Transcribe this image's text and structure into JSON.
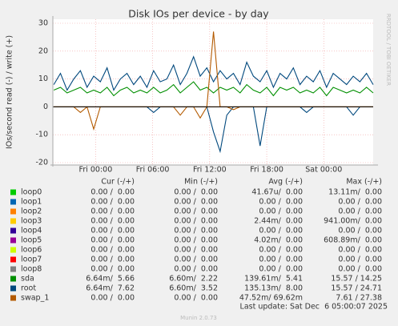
{
  "chart_data": {
    "type": "line",
    "title": "Disk IOs per device - by day",
    "y_label": "IOs/second read (-) / write (+)",
    "watermark": "RRDTOOL / TOBI OETIKER",
    "footer": "Munin 2.0.73",
    "last_update": "Last update: Sat Dec  6 05:00:07 2025",
    "column_headers": [
      "Cur (-/+)",
      "Min (-/+)",
      "Avg (-/+)",
      "Max (-/+)"
    ],
    "x": [
      -4.4,
      -3.7,
      -3,
      -2.3,
      -1.6,
      -0.9,
      -0.2,
      0.5,
      1.2,
      1.9,
      2.6,
      3.3,
      4,
      4.7,
      5.4,
      6.1,
      6.8,
      7.5,
      8.2,
      8.9,
      9.6,
      10.3,
      11,
      11.7,
      12.4,
      13.1,
      13.8,
      14.5,
      15.2,
      15.9,
      16.6,
      17.3,
      18,
      18.7,
      19.4,
      20.1,
      20.8,
      21.5,
      22.2,
      22.9,
      23.6,
      24.3,
      25,
      25.7,
      26.4,
      27.1,
      27.8,
      28.5,
      29.2
    ],
    "xlim": [
      -4.5,
      29.2
    ],
    "xticks": [
      {
        "value": 0,
        "label": "Fri 00:00"
      },
      {
        "value": 6,
        "label": "Fri 06:00"
      },
      {
        "value": 12,
        "label": "Fri 12:00"
      },
      {
        "value": 18,
        "label": "Fri 18:00"
      },
      {
        "value": 24,
        "label": "Sat 00:00"
      }
    ],
    "ylim": [
      -20,
      30
    ],
    "yticks": [
      -20,
      -10,
      0,
      10,
      20,
      30
    ],
    "grid": true,
    "series": [
      {
        "name": "loop0",
        "color": "#00cc00",
        "stats": [
          "0.00 /  0.00",
          "0.00 /  0.00",
          "41.67u/  0.00",
          "13.11m/  0.00"
        ]
      },
      {
        "name": "loop1",
        "color": "#0066b3",
        "stats": [
          "0.00 /  0.00",
          "0.00 /  0.00",
          "0.00 /  0.00",
          "0.00 /  0.00"
        ]
      },
      {
        "name": "loop2",
        "color": "#ff8000",
        "stats": [
          "0.00 /  0.00",
          "0.00 /  0.00",
          "0.00 /  0.00",
          "0.00 /  0.00"
        ]
      },
      {
        "name": "loop3",
        "color": "#ffcc00",
        "stats": [
          "0.00 /  0.00",
          "0.00 /  0.00",
          "2.44m/  0.00",
          "941.00m/  0.00"
        ]
      },
      {
        "name": "loop4",
        "color": "#330099",
        "stats": [
          "0.00 /  0.00",
          "0.00 /  0.00",
          "0.00 /  0.00",
          "0.00 /  0.00"
        ]
      },
      {
        "name": "loop5",
        "color": "#990099",
        "stats": [
          "0.00 /  0.00",
          "0.00 /  0.00",
          "4.02m/  0.00",
          "608.89m/  0.00"
        ]
      },
      {
        "name": "loop6",
        "color": "#ccff00",
        "stats": [
          "0.00 /  0.00",
          "0.00 /  0.00",
          "0.00 /  0.00",
          "0.00 /  0.00"
        ]
      },
      {
        "name": "loop7",
        "color": "#ff0000",
        "stats": [
          "0.00 /  0.00",
          "0.00 /  0.00",
          "0.00 /  0.00",
          "0.00 /  0.00"
        ]
      },
      {
        "name": "loop8",
        "color": "#808080",
        "stats": [
          "0.00 /  0.00",
          "0.00 /  0.00",
          "0.00 /  0.00",
          "0.00 /  0.00"
        ]
      },
      {
        "name": "sda",
        "color": "#008f00",
        "stats": [
          "6.64m/  5.66",
          "6.60m/  2.22",
          "139.61m/  5.41",
          "15.57 / 14.25"
        ],
        "values": [
          6,
          7,
          5,
          6,
          7,
          5,
          6,
          5,
          7,
          4,
          6,
          7,
          5,
          6,
          5,
          7,
          5,
          6,
          8,
          5,
          7,
          9,
          6,
          7,
          5,
          7,
          6,
          7,
          5,
          8,
          6,
          5,
          7,
          4,
          7,
          6,
          7,
          5,
          6,
          5,
          7,
          4,
          7,
          6,
          5,
          6,
          5,
          7,
          5
        ]
      },
      {
        "name": "root",
        "color": "#00487d",
        "stats": [
          "6.64m/  7.62",
          "6.60m/  3.52",
          "135.13m/  8.00",
          "15.57 / 24.71"
        ],
        "values": [
          8,
          12,
          6,
          10,
          13,
          7,
          11,
          9,
          14,
          6,
          10,
          12,
          8,
          11,
          7,
          13,
          9,
          10,
          15,
          8,
          12,
          18,
          11,
          14,
          9,
          13,
          10,
          12,
          8,
          16,
          11,
          9,
          13,
          7,
          12,
          10,
          14,
          8,
          11,
          9,
          13,
          7,
          12,
          10,
          8,
          11,
          9,
          12,
          8
        ],
        "read_values": [
          0,
          0,
          0,
          0,
          0,
          0,
          0,
          0,
          0,
          0,
          0,
          0,
          0,
          0,
          0,
          -2,
          0,
          0,
          0,
          0,
          0,
          0,
          0,
          0,
          -9,
          -16,
          -3,
          0,
          0,
          0,
          0,
          -14,
          0,
          0,
          0,
          0,
          0,
          0,
          -2,
          0,
          0,
          0,
          0,
          0,
          0,
          -3,
          0,
          0,
          0
        ]
      },
      {
        "name": "swap_1",
        "color": "#b35a00",
        "stats": [
          "0.00 /  0.00",
          "0.00 /  0.00",
          "47.52m/ 69.62m",
          "7.61 / 27.38"
        ],
        "values": [
          0,
          0,
          0,
          0,
          0,
          0,
          0,
          0,
          0,
          0,
          0,
          0,
          0,
          0,
          0,
          0,
          0,
          0,
          0,
          0,
          0,
          0,
          0,
          0,
          27,
          0,
          0,
          0,
          0,
          0,
          0,
          0,
          0,
          0,
          0,
          0,
          0,
          0,
          0,
          0,
          0,
          0,
          0,
          0,
          0,
          0,
          0,
          0,
          0
        ],
        "read_values": [
          0,
          0,
          0,
          0,
          -2,
          0,
          -8,
          0,
          0,
          0,
          0,
          0,
          0,
          0,
          0,
          0,
          0,
          0,
          0,
          -3,
          0,
          0,
          -4,
          0,
          0,
          0,
          0,
          -1,
          0,
          0,
          0,
          0,
          0,
          0,
          0,
          0,
          0,
          0,
          0,
          0,
          0,
          0,
          0,
          0,
          0,
          0,
          0,
          0,
          0
        ]
      }
    ]
  }
}
